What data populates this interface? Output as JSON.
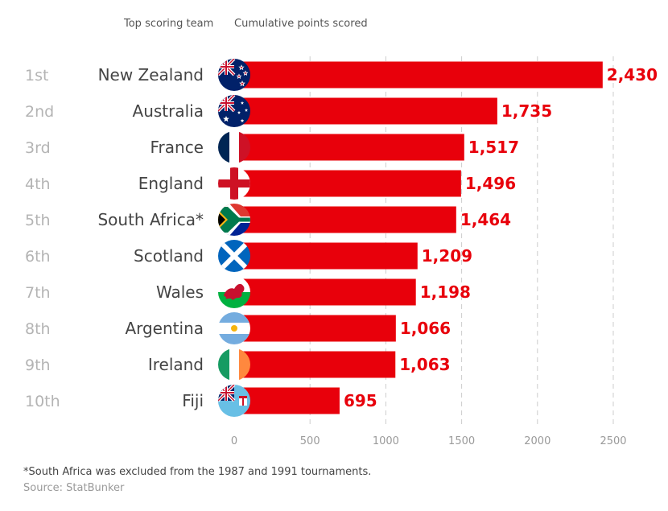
{
  "header": {
    "team_label": "Top scoring team",
    "points_label": "Cumulative points scored"
  },
  "colors": {
    "bar": "#e8000b",
    "value_text": "#e8000b",
    "rank_text": "#b4b4b4",
    "grid": "#cccccc"
  },
  "chart_data": {
    "type": "bar",
    "orientation": "horizontal",
    "title": "",
    "xlabel": "",
    "ylabel": "",
    "xlim": [
      0,
      2500
    ],
    "ticks": [
      0,
      500,
      1000,
      1500,
      2000,
      2500
    ],
    "grid": "vertical dashed",
    "ranks": [
      "1st",
      "2nd",
      "3rd",
      "4th",
      "5th",
      "6th",
      "7th",
      "8th",
      "9th",
      "10th"
    ],
    "categories": [
      "New Zealand",
      "Australia",
      "France",
      "England",
      "South Africa*",
      "Scotland",
      "Wales",
      "Argentina",
      "Ireland",
      "Fiji"
    ],
    "values": [
      2430,
      1735,
      1517,
      1496,
      1464,
      1209,
      1198,
      1066,
      1063,
      695
    ],
    "value_labels": [
      "2,430",
      "1,735",
      "1,517",
      "1,496",
      "1,464",
      "1,209",
      "1,198",
      "1,066",
      "1,063",
      "695"
    ],
    "flag_icons": [
      "new-zealand-flag-icon",
      "australia-flag-icon",
      "france-flag-icon",
      "england-flag-icon",
      "south-africa-flag-icon",
      "scotland-flag-icon",
      "wales-flag-icon",
      "argentina-flag-icon",
      "ireland-flag-icon",
      "fiji-flag-icon"
    ]
  },
  "footnote": "*South Africa was excluded from the 1987 and 1991 tournaments.",
  "source": "Source: StatBunker"
}
